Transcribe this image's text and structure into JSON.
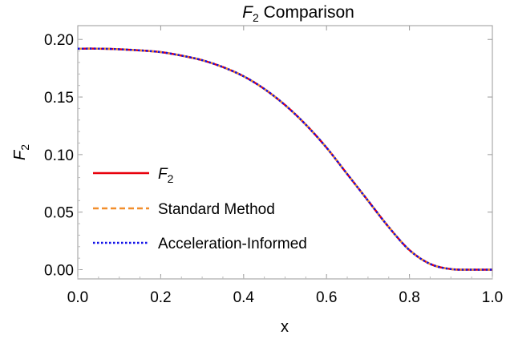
{
  "chart_data": {
    "type": "line",
    "title": {
      "base": "F",
      "sub": "2",
      "rest": " Comparison"
    },
    "xlabel": "x",
    "ylabel": {
      "base": "F",
      "sub": "2"
    },
    "xlim": [
      0.0,
      1.0
    ],
    "ylim": [
      -0.008,
      0.212
    ],
    "x_ticks": [
      "0.0",
      "0.2",
      "0.4",
      "0.6",
      "0.8",
      "1.0"
    ],
    "y_ticks": [
      "0.00",
      "0.05",
      "0.10",
      "0.15",
      "0.20"
    ],
    "grid": false,
    "legend_position": "left-middle",
    "x": [
      0.0,
      0.05,
      0.1,
      0.15,
      0.2,
      0.25,
      0.3,
      0.35,
      0.4,
      0.45,
      0.5,
      0.55,
      0.6,
      0.65,
      0.7,
      0.75,
      0.8,
      0.85,
      0.9,
      0.95,
      1.0
    ],
    "series": [
      {
        "name": {
          "base": "F",
          "sub": "2"
        },
        "color": "#e8000b",
        "dash": "solid",
        "values": [
          0.192,
          0.192,
          0.1915,
          0.1905,
          0.189,
          0.186,
          0.182,
          0.176,
          0.168,
          0.157,
          0.143,
          0.126,
          0.106,
          0.083,
          0.06,
          0.037,
          0.017,
          0.005,
          0.0005,
          0.0,
          0.0
        ]
      },
      {
        "name": "Standard Method",
        "color": "#f28e2b",
        "dash": "7,4",
        "values": [
          0.192,
          0.192,
          0.1915,
          0.1905,
          0.189,
          0.186,
          0.182,
          0.176,
          0.168,
          0.157,
          0.143,
          0.126,
          0.106,
          0.083,
          0.06,
          0.037,
          0.017,
          0.005,
          0.0005,
          0.0,
          0.0
        ]
      },
      {
        "name": "Acceleration-Informed",
        "color": "#1010e8",
        "dash": "2.5,2.5",
        "values": [
          0.192,
          0.192,
          0.1915,
          0.1905,
          0.189,
          0.186,
          0.182,
          0.176,
          0.168,
          0.157,
          0.143,
          0.126,
          0.106,
          0.083,
          0.06,
          0.037,
          0.017,
          0.005,
          0.0005,
          0.0,
          0.0
        ]
      }
    ]
  }
}
